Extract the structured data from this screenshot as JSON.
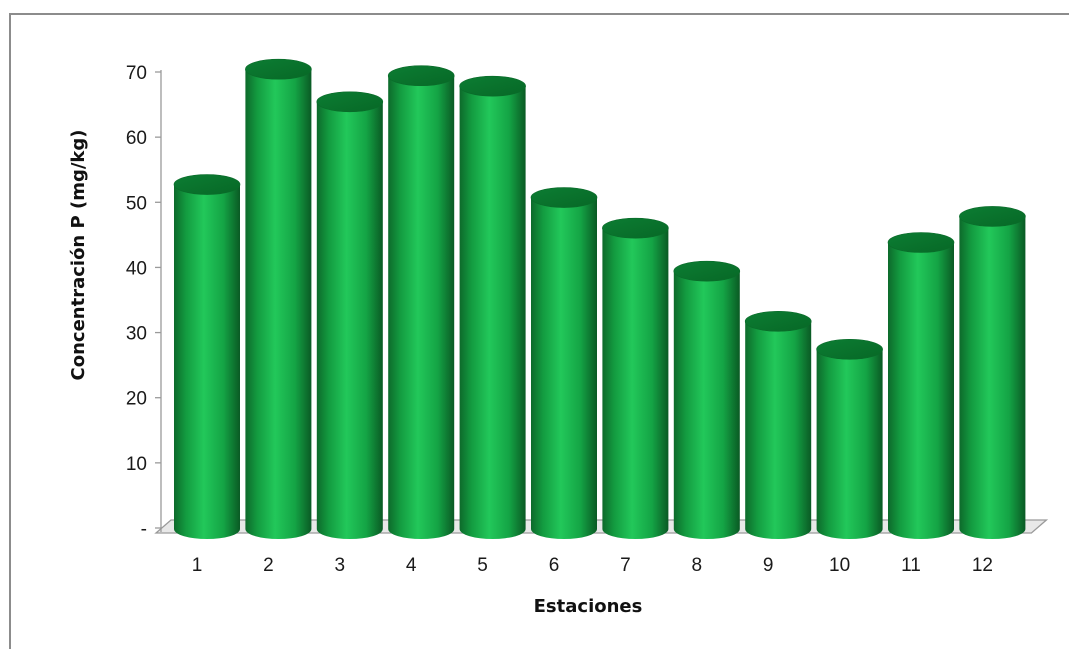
{
  "chart_data": {
    "type": "bar",
    "style": "3d-cylinder",
    "categories": [
      "1",
      "2",
      "3",
      "4",
      "5",
      "6",
      "7",
      "8",
      "9",
      "10",
      "11",
      "12"
    ],
    "values": [
      51.5,
      69.2,
      64.2,
      68.2,
      66.6,
      49.5,
      44.8,
      38.2,
      30.5,
      26.2,
      42.6,
      46.6
    ],
    "xlabel": "Estaciones",
    "ylabel": "Concentración P (mg/kg)",
    "ylim": [
      0,
      70
    ],
    "yticks": [
      "-",
      "10",
      "20",
      "30",
      "40",
      "50",
      "60",
      "70"
    ],
    "bar_color": "#1aa84a",
    "grid": false,
    "legend": "none"
  }
}
